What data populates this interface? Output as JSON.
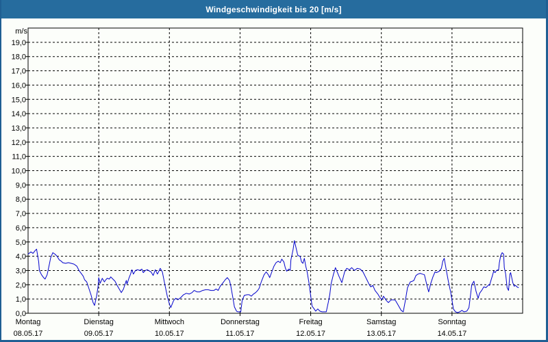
{
  "window": {
    "title": "Windgeschwindigkeit bis 20 [m/s]"
  },
  "colors": {
    "titlebar_bg": "#266C9E",
    "titlebar_text": "#FFFFFF",
    "frame": "#1F5F93",
    "plot_bg": "#FCFEFA",
    "grid": "#000000",
    "axis": "#000000",
    "label_text": "#000000",
    "series_line": "#0000CC"
  },
  "chart_data": {
    "type": "line",
    "title": "Windgeschwindigkeit bis 20 [m/s]",
    "grid": "dashed",
    "legend": "none",
    "y_axis": {
      "unit_label": "m/s",
      "min": 0,
      "max": 20,
      "tick_step": 1,
      "tick_labels": [
        "0,0",
        "1,0",
        "2,0",
        "3,0",
        "4,0",
        "5,0",
        "6,0",
        "7,0",
        "8,0",
        "9,0",
        "10,0",
        "11,0",
        "12,0",
        "13,0",
        "14,0",
        "15,0",
        "16,0",
        "17,0",
        "18,0",
        "19,0"
      ]
    },
    "x_axis": {
      "span_days": 7,
      "ticks": [
        {
          "weekday": "Montag",
          "date": "08.05.17"
        },
        {
          "weekday": "Dienstag",
          "date": "09.05.17"
        },
        {
          "weekday": "Mittwoch",
          "date": "10.05.17"
        },
        {
          "weekday": "Donnerstag",
          "date": "11.05.17"
        },
        {
          "weekday": "Freitag",
          "date": "12.05.17"
        },
        {
          "weekday": "Samstag",
          "date": "13.05.17"
        },
        {
          "weekday": "Sonntag",
          "date": "14.05.17"
        }
      ]
    },
    "series": [
      {
        "name": "Windgeschwindigkeit",
        "unit": "m/s",
        "color": "#0000CC",
        "points": [
          [
            0,
            4.15
          ],
          [
            0.04,
            4.3
          ],
          [
            0.07,
            4.2
          ],
          [
            0.1,
            4.4
          ],
          [
            0.12,
            4.5
          ],
          [
            0.15,
            3.6
          ],
          [
            0.16,
            3.0
          ],
          [
            0.19,
            2.7
          ],
          [
            0.22,
            2.5
          ],
          [
            0.24,
            2.4
          ],
          [
            0.27,
            2.7
          ],
          [
            0.3,
            3.4
          ],
          [
            0.32,
            3.9
          ],
          [
            0.35,
            4.25
          ],
          [
            0.38,
            4.15
          ],
          [
            0.41,
            4.0
          ],
          [
            0.44,
            3.75
          ],
          [
            0.47,
            3.65
          ],
          [
            0.49,
            3.55
          ],
          [
            0.53,
            3.5
          ],
          [
            0.57,
            3.55
          ],
          [
            0.61,
            3.5
          ],
          [
            0.65,
            3.45
          ],
          [
            0.69,
            3.3
          ],
          [
            0.72,
            3.0
          ],
          [
            0.75,
            2.8
          ],
          [
            0.78,
            2.6
          ],
          [
            0.8,
            2.35
          ],
          [
            0.83,
            2.2
          ],
          [
            0.86,
            1.75
          ],
          [
            0.89,
            1.3
          ],
          [
            0.92,
            0.75
          ],
          [
            0.94,
            0.55
          ],
          [
            0.97,
            1.2
          ],
          [
            0.99,
            1.85
          ],
          [
            1.0,
            2.5
          ],
          [
            1.02,
            2.1
          ],
          [
            1.05,
            2.45
          ],
          [
            1.08,
            2.2
          ],
          [
            1.1,
            2.35
          ],
          [
            1.12,
            2.45
          ],
          [
            1.15,
            2.4
          ],
          [
            1.17,
            2.55
          ],
          [
            1.2,
            2.4
          ],
          [
            1.23,
            2.25
          ],
          [
            1.26,
            1.95
          ],
          [
            1.29,
            1.7
          ],
          [
            1.32,
            1.45
          ],
          [
            1.35,
            1.7
          ],
          [
            1.39,
            2.3
          ],
          [
            1.4,
            2.05
          ],
          [
            1.43,
            2.5
          ],
          [
            1.45,
            2.75
          ],
          [
            1.47,
            3.05
          ],
          [
            1.49,
            2.75
          ],
          [
            1.52,
            3.0
          ],
          [
            1.55,
            3.05
          ],
          [
            1.58,
            3.0
          ],
          [
            1.61,
            3.1
          ],
          [
            1.63,
            2.85
          ],
          [
            1.66,
            3.0
          ],
          [
            1.69,
            3.05
          ],
          [
            1.72,
            2.95
          ],
          [
            1.74,
            2.9
          ],
          [
            1.77,
            2.65
          ],
          [
            1.8,
            3.05
          ],
          [
            1.83,
            2.75
          ],
          [
            1.87,
            3.15
          ],
          [
            1.9,
            2.9
          ],
          [
            1.93,
            2.15
          ],
          [
            1.97,
            1.2
          ],
          [
            2.0,
            0.65
          ],
          [
            2.02,
            0.4
          ],
          [
            2.06,
            0.9
          ],
          [
            2.09,
            1.05
          ],
          [
            2.12,
            0.95
          ],
          [
            2.16,
            1.1
          ],
          [
            2.2,
            1.3
          ],
          [
            2.24,
            1.4
          ],
          [
            2.28,
            1.35
          ],
          [
            2.32,
            1.45
          ],
          [
            2.35,
            1.6
          ],
          [
            2.39,
            1.5
          ],
          [
            2.43,
            1.5
          ],
          [
            2.47,
            1.6
          ],
          [
            2.51,
            1.65
          ],
          [
            2.55,
            1.65
          ],
          [
            2.59,
            1.6
          ],
          [
            2.63,
            1.6
          ],
          [
            2.66,
            1.7
          ],
          [
            2.69,
            1.6
          ],
          [
            2.72,
            1.9
          ],
          [
            2.76,
            2.15
          ],
          [
            2.79,
            2.35
          ],
          [
            2.82,
            2.5
          ],
          [
            2.85,
            2.3
          ],
          [
            2.87,
            1.9
          ],
          [
            2.9,
            1.05
          ],
          [
            2.92,
            0.45
          ],
          [
            2.95,
            0.15
          ],
          [
            2.97,
            0.1
          ],
          [
            3.01,
            0.1
          ],
          [
            3.03,
            0.9
          ],
          [
            3.06,
            1.25
          ],
          [
            3.1,
            1.3
          ],
          [
            3.13,
            1.3
          ],
          [
            3.16,
            1.2
          ],
          [
            3.19,
            1.35
          ],
          [
            3.22,
            1.45
          ],
          [
            3.25,
            1.6
          ],
          [
            3.27,
            1.75
          ],
          [
            3.3,
            2.2
          ],
          [
            3.34,
            2.7
          ],
          [
            3.37,
            2.9
          ],
          [
            3.4,
            2.7
          ],
          [
            3.42,
            2.5
          ],
          [
            3.45,
            2.9
          ],
          [
            3.48,
            3.3
          ],
          [
            3.51,
            3.55
          ],
          [
            3.54,
            3.65
          ],
          [
            3.57,
            3.55
          ],
          [
            3.59,
            3.8
          ],
          [
            3.62,
            3.6
          ],
          [
            3.64,
            3.2
          ],
          [
            3.66,
            2.95
          ],
          [
            3.69,
            3.1
          ],
          [
            3.71,
            3.0
          ],
          [
            3.72,
            3.75
          ],
          [
            3.75,
            4.45
          ],
          [
            3.77,
            5.1
          ],
          [
            3.81,
            4.2
          ],
          [
            3.82,
            4.05
          ],
          [
            3.85,
            4.0
          ],
          [
            3.87,
            3.6
          ],
          [
            3.89,
            3.5
          ],
          [
            3.91,
            3.85
          ],
          [
            3.93,
            3.3
          ],
          [
            3.95,
            2.9
          ],
          [
            3.98,
            2.0
          ],
          [
            4.0,
            1.2
          ],
          [
            4.02,
            0.5
          ],
          [
            4.05,
            0.3
          ],
          [
            4.07,
            0.15
          ],
          [
            4.1,
            0.3
          ],
          [
            4.13,
            0.15
          ],
          [
            4.16,
            0.1
          ],
          [
            4.19,
            0.1
          ],
          [
            4.22,
            0.1
          ],
          [
            4.25,
            0.8
          ],
          [
            4.27,
            1.3
          ],
          [
            4.29,
            2.1
          ],
          [
            4.32,
            2.7
          ],
          [
            4.35,
            3.2
          ],
          [
            4.4,
            2.6
          ],
          [
            4.44,
            2.15
          ],
          [
            4.48,
            2.9
          ],
          [
            4.51,
            3.15
          ],
          [
            4.55,
            3.05
          ],
          [
            4.58,
            3.2
          ],
          [
            4.62,
            3.0
          ],
          [
            4.66,
            3.15
          ],
          [
            4.7,
            3.1
          ],
          [
            4.74,
            2.9
          ],
          [
            4.77,
            2.6
          ],
          [
            4.8,
            2.3
          ],
          [
            4.83,
            2.0
          ],
          [
            4.85,
            1.85
          ],
          [
            4.88,
            1.95
          ],
          [
            4.91,
            1.6
          ],
          [
            4.95,
            1.35
          ],
          [
            4.98,
            1.1
          ],
          [
            5.01,
            0.95
          ],
          [
            5.03,
            1.2
          ],
          [
            5.07,
            0.9
          ],
          [
            5.1,
            0.75
          ],
          [
            5.13,
            0.9
          ],
          [
            5.16,
            0.95
          ],
          [
            5.2,
            0.9
          ],
          [
            5.24,
            0.55
          ],
          [
            5.28,
            0.2
          ],
          [
            5.31,
            0.1
          ],
          [
            5.34,
            0.9
          ],
          [
            5.37,
            1.8
          ],
          [
            5.41,
            2.2
          ],
          [
            5.44,
            2.25
          ],
          [
            5.46,
            2.3
          ],
          [
            5.49,
            2.65
          ],
          [
            5.52,
            2.75
          ],
          [
            5.55,
            2.8
          ],
          [
            5.58,
            2.75
          ],
          [
            5.61,
            2.7
          ],
          [
            5.65,
            1.85
          ],
          [
            5.67,
            1.5
          ],
          [
            5.7,
            2.1
          ],
          [
            5.73,
            2.55
          ],
          [
            5.76,
            2.9
          ],
          [
            5.78,
            2.85
          ],
          [
            5.82,
            2.95
          ],
          [
            5.85,
            3.15
          ],
          [
            5.87,
            3.65
          ],
          [
            5.89,
            3.85
          ],
          [
            5.92,
            3.0
          ],
          [
            5.95,
            2.2
          ],
          [
            5.98,
            1.5
          ],
          [
            6.0,
            0.9
          ],
          [
            6.02,
            0.3
          ],
          [
            6.05,
            0.1
          ],
          [
            6.08,
            0.05
          ],
          [
            6.11,
            0.1
          ],
          [
            6.14,
            0.2
          ],
          [
            6.17,
            0.1
          ],
          [
            6.21,
            0.15
          ],
          [
            6.24,
            0.4
          ],
          [
            6.26,
            1.2
          ],
          [
            6.28,
            2.0
          ],
          [
            6.31,
            2.25
          ],
          [
            6.34,
            1.55
          ],
          [
            6.37,
            1.05
          ],
          [
            6.39,
            1.4
          ],
          [
            6.42,
            1.6
          ],
          [
            6.45,
            1.85
          ],
          [
            6.48,
            1.8
          ],
          [
            6.52,
            2.0
          ],
          [
            6.53,
            1.95
          ],
          [
            6.57,
            2.6
          ],
          [
            6.59,
            2.95
          ],
          [
            6.61,
            2.85
          ],
          [
            6.63,
            3.0
          ],
          [
            6.66,
            3.05
          ],
          [
            6.67,
            3.55
          ],
          [
            6.69,
            4.05
          ],
          [
            6.71,
            4.25
          ],
          [
            6.73,
            4.15
          ],
          [
            6.74,
            3.2
          ],
          [
            6.76,
            2.75
          ],
          [
            6.78,
            1.8
          ],
          [
            6.8,
            1.6
          ],
          [
            6.82,
            2.75
          ],
          [
            6.83,
            2.85
          ],
          [
            6.86,
            2.15
          ],
          [
            6.88,
            1.9
          ],
          [
            6.9,
            1.95
          ],
          [
            6.92,
            1.85
          ],
          [
            6.94,
            1.8
          ]
        ]
      }
    ]
  }
}
